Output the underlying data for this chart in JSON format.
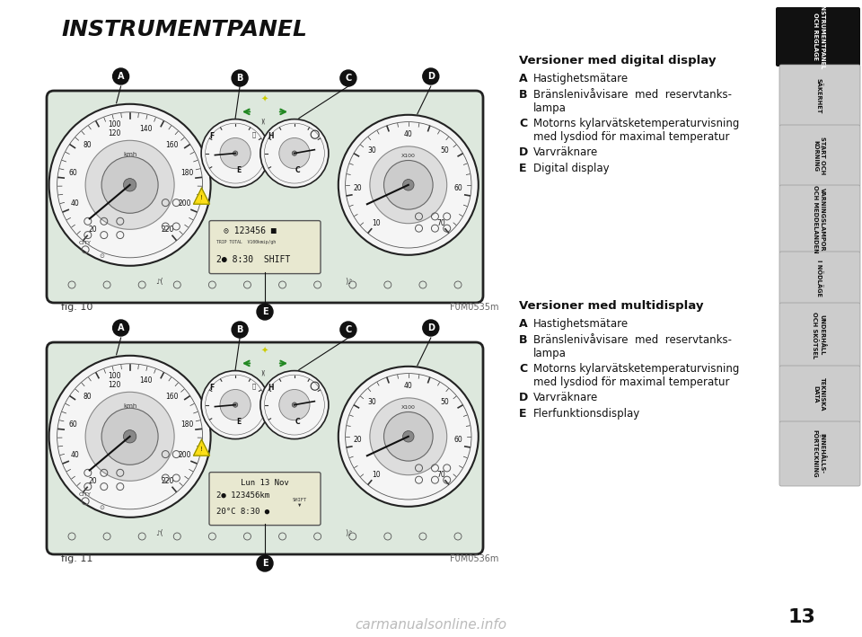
{
  "background_color": "#ffffff",
  "title": "INSTRUMENTPANEL",
  "title_fontsize": 18,
  "title_fontweight": "bold",
  "fig_label1": "fig. 10",
  "fig_label2": "fig. 11",
  "fig1_code": "F0M0535m",
  "fig2_code": "F0M0536m",
  "section1_title": "Versioner med digital display",
  "section1_items": [
    [
      "A",
      "Hastighetsmätare"
    ],
    [
      "B",
      "Bränslenivåvisare  med  reservtanks-\nlampa"
    ],
    [
      "C",
      "Motorns kylarvätsketemperaturvisning\nmed lysdiod för maximal temperatur"
    ],
    [
      "D",
      "Varvräknare"
    ],
    [
      "E",
      "Digital display"
    ]
  ],
  "section2_title": "Versioner med multidisplay",
  "section2_items": [
    [
      "A",
      "Hastighetsmätare"
    ],
    [
      "B",
      "Bränslenivåvisare  med  reservtanks-\nlampa"
    ],
    [
      "C",
      "Motorns kylarvätsketemperaturvisning\nmed lysdiod för maximal temperatur"
    ],
    [
      "D",
      "Varvräknare"
    ],
    [
      "E",
      "Flerfunktionsdisplay"
    ]
  ],
  "sidebar_items": [
    {
      "text": "INSTRUMENTPANEL\nOCH REGLAGE",
      "bg": "#111111",
      "fg": "#ffffff"
    },
    {
      "text": "SÄKERHET",
      "bg": "#cccccc",
      "fg": "#111111"
    },
    {
      "text": "START OCH\nKÖRNING",
      "bg": "#cccccc",
      "fg": "#111111"
    },
    {
      "text": "VARNINGSLAMPOR\nOCH MEDDELANDEN",
      "bg": "#cccccc",
      "fg": "#111111"
    },
    {
      "text": "I NÖDLÄGE",
      "bg": "#cccccc",
      "fg": "#111111"
    },
    {
      "text": "UNDERHÅLL\nOCH SKÖTSEL",
      "bg": "#cccccc",
      "fg": "#111111"
    },
    {
      "text": "TEKNISKA\nDATA",
      "bg": "#cccccc",
      "fg": "#111111"
    },
    {
      "text": "INNEHÅLLS-\nFÖRTECKNING",
      "bg": "#cccccc",
      "fg": "#111111"
    }
  ],
  "page_number": "13",
  "watermark": "carmanualsonline.info",
  "watermark_color": "#bbbbbb",
  "cluster_bg": "#dde8dd",
  "cluster_edge": "#333333",
  "gauge_bg": "#f5f5f5",
  "display_bg": "#e8e8d0"
}
